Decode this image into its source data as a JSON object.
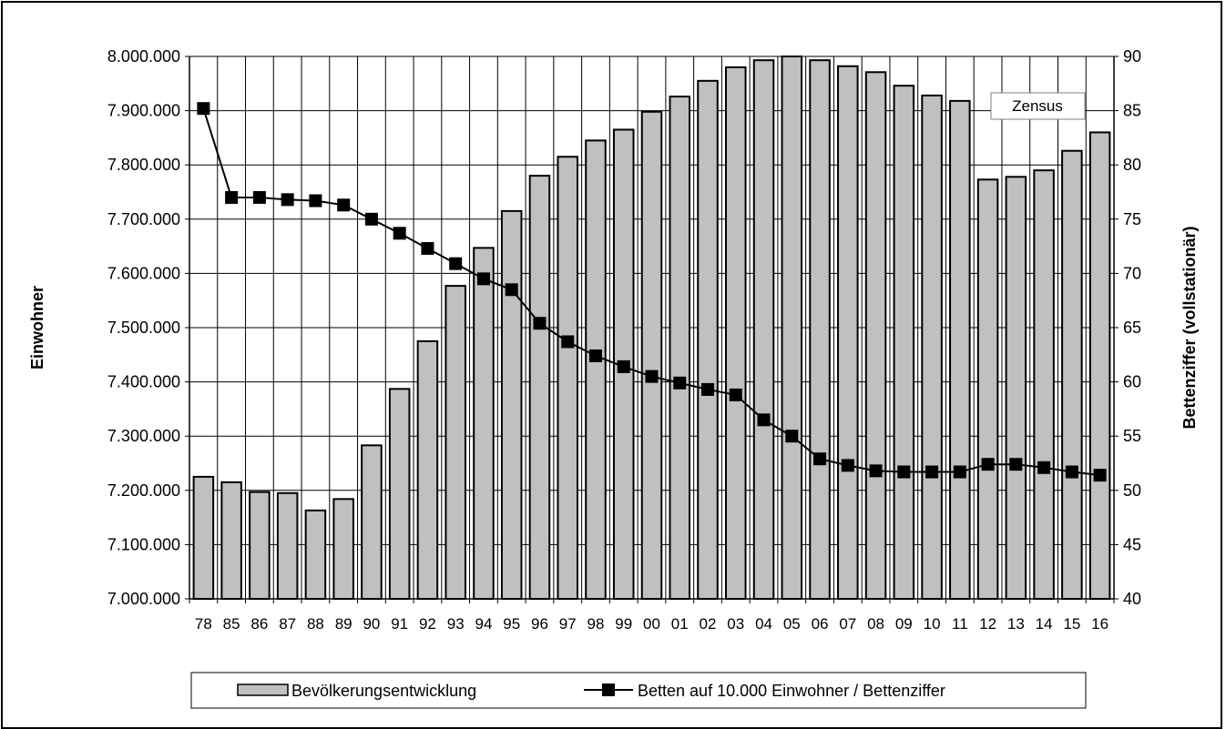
{
  "chart_data": {
    "type": "bar",
    "categories": [
      "78",
      "85",
      "86",
      "87",
      "88",
      "89",
      "90",
      "91",
      "92",
      "93",
      "94",
      "95",
      "96",
      "97",
      "98",
      "99",
      "00",
      "01",
      "02",
      "03",
      "04",
      "05",
      "06",
      "07",
      "08",
      "09",
      "10",
      "11",
      "12",
      "13",
      "14",
      "15",
      "16"
    ],
    "series": [
      {
        "name": "Bevölkerungsentwicklung",
        "type": "bar",
        "axis": "left",
        "values": [
          7225000,
          7215000,
          7197000,
          7195000,
          7163000,
          7184000,
          7283000,
          7387000,
          7475000,
          7577000,
          7647000,
          7715000,
          7780000,
          7815000,
          7845000,
          7865000,
          7898000,
          7926000,
          7955000,
          7980000,
          7993000,
          8000000,
          7993000,
          7982000,
          7971000,
          7946000,
          7928000,
          7918000,
          7773000,
          7778000,
          7790000,
          7826000,
          7860000
        ]
      },
      {
        "name": "Betten auf 10.000 Einwohner / Bettenziffer",
        "type": "line",
        "axis": "right",
        "values": [
          85.2,
          77.0,
          77.0,
          76.8,
          76.7,
          76.3,
          75.0,
          73.7,
          72.3,
          70.9,
          69.5,
          68.5,
          65.4,
          63.7,
          62.4,
          61.4,
          60.5,
          59.9,
          59.3,
          58.8,
          56.5,
          55.0,
          52.9,
          52.3,
          51.8,
          51.7,
          51.7,
          51.7,
          52.4,
          52.4,
          52.1,
          51.7,
          51.4
        ]
      }
    ],
    "ylabel": "Einwohner",
    "ylabel_right": "Bettenziffer (vollstationär)",
    "ylim": [
      7000000,
      8000000
    ],
    "ylim_right": [
      40,
      90
    ],
    "yticks": [
      "7.000.000",
      "7.100.000",
      "7.200.000",
      "7.300.000",
      "7.400.000",
      "7.500.000",
      "7.600.000",
      "7.700.000",
      "7.800.000",
      "7.900.000",
      "8.000.000"
    ],
    "yticks_right": [
      "40",
      "45",
      "50",
      "55",
      "60",
      "65",
      "70",
      "75",
      "80",
      "85",
      "90"
    ],
    "annotation": "Zensus",
    "grid": true,
    "legend_position": "bottom",
    "colors": {
      "bar_fill": "#c0c0c0",
      "bar_stroke": "#000000",
      "line": "#000000",
      "grid": "#000000"
    }
  }
}
